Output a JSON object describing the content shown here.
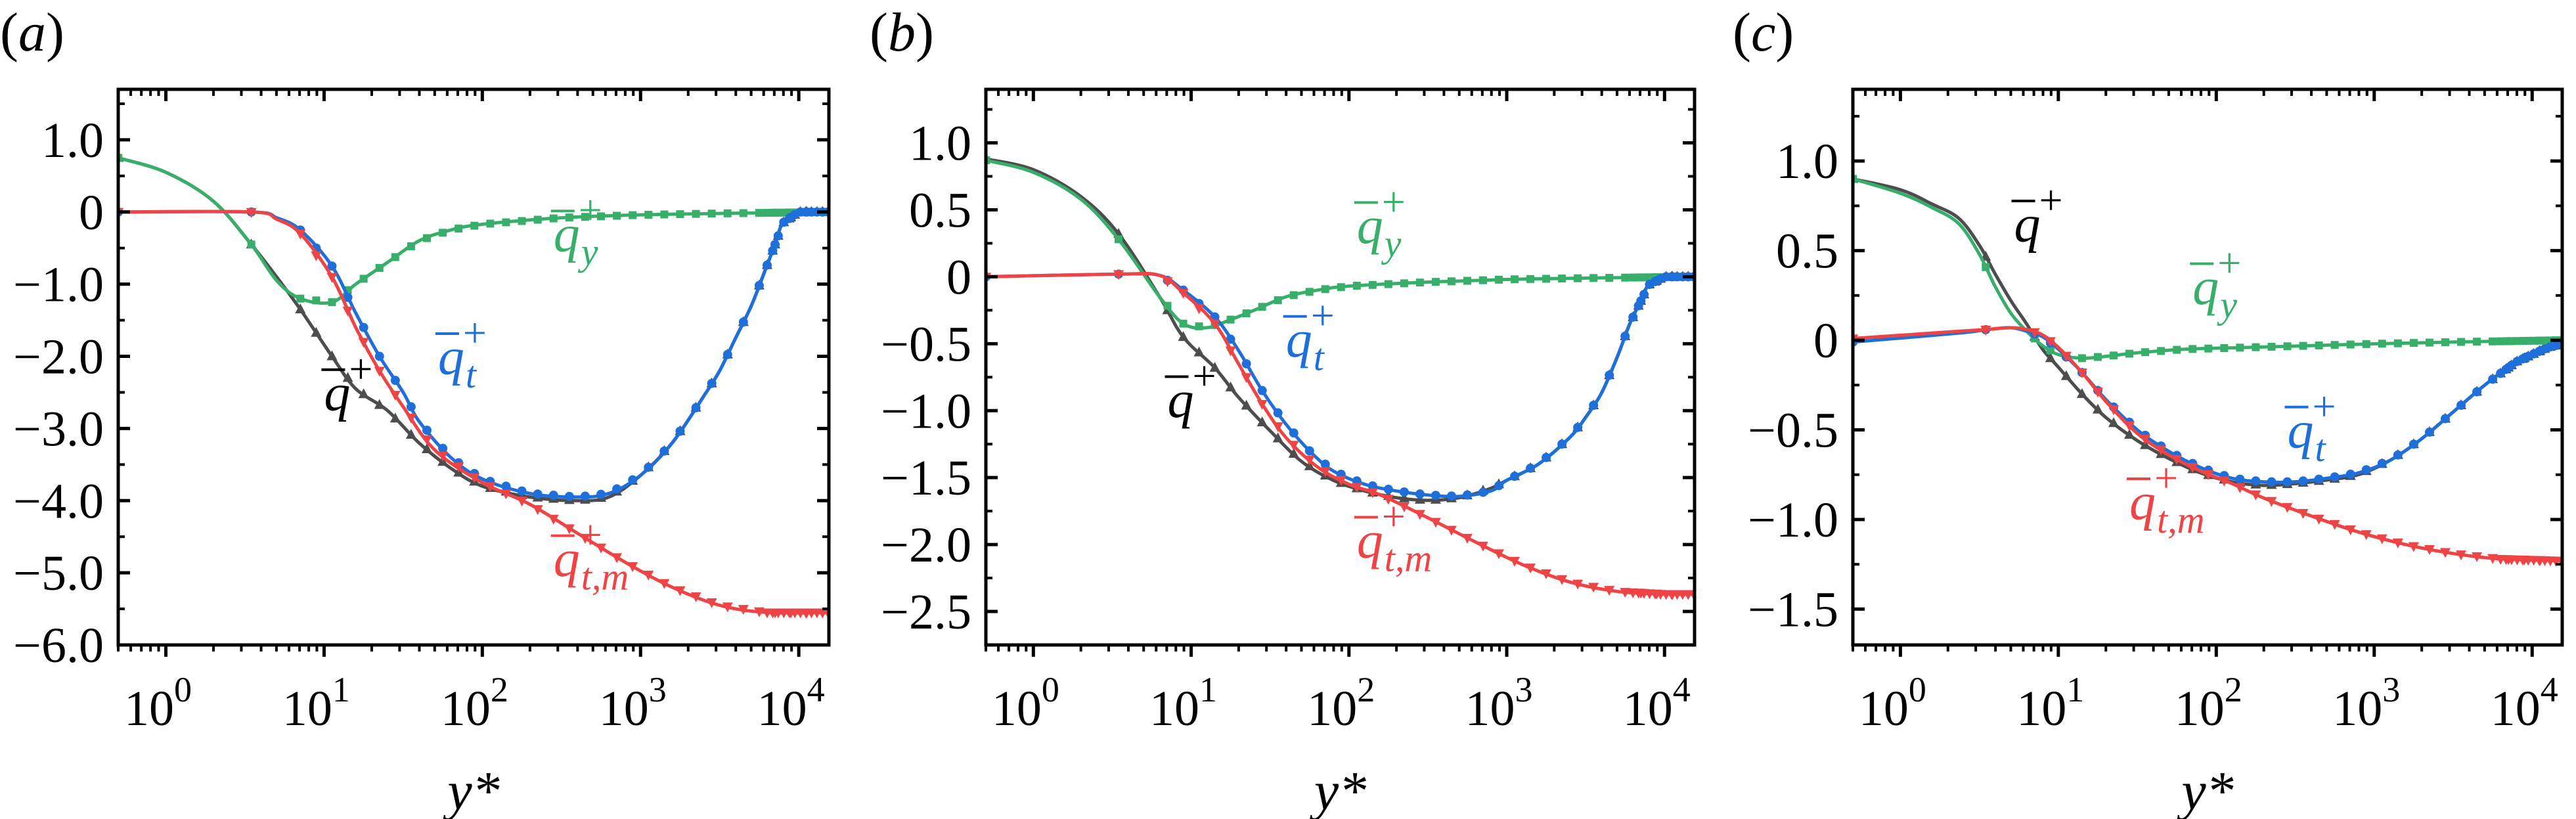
{
  "figure": {
    "xlabel": "y*",
    "colors": {
      "q": "#4d4d4d",
      "qy": "#37ae6a",
      "qt": "#1f6fdb",
      "qtm": "#ef4446"
    }
  },
  "chart_data": [
    {
      "type": "line",
      "panel": "(a)",
      "title": "",
      "xlabel": "y*",
      "ylabel": "",
      "xscale": "log",
      "xlim": [
        0.5,
        15500
      ],
      "ylim": [
        -6.0,
        1.7
      ],
      "xticks": [
        "10^0",
        "10^1",
        "10^2",
        "10^3",
        "10^4"
      ],
      "yticks": [
        1.0,
        0,
        -1.0,
        -2.0,
        -3.0,
        -4.0,
        -5.0,
        -6.0
      ],
      "ytick_labels": [
        "1.0",
        "0",
        "−1.0",
        "−2.0",
        "−3.0",
        "−4.0",
        "−5.0",
        "−6.0"
      ],
      "grid": false,
      "legend": "inline labels",
      "series": [
        {
          "name": "q̄⁺",
          "key": "q",
          "marker": "triangle-up",
          "log_x": [
            -0.3,
            0.0,
            0.3,
            0.54,
            0.7,
            0.85,
            1.05,
            1.2,
            1.4,
            1.6,
            1.8,
            2.0,
            2.3,
            2.6,
            2.8,
            3.0,
            3.2,
            3.4,
            3.5,
            3.6,
            3.7,
            3.78,
            3.85,
            3.9,
            4.0,
            4.19
          ],
          "values": [
            0.75,
            0.55,
            0.15,
            -0.45,
            -0.9,
            -1.35,
            -2.0,
            -2.45,
            -2.75,
            -3.2,
            -3.55,
            -3.8,
            -3.95,
            -4.0,
            -3.95,
            -3.65,
            -3.2,
            -2.55,
            -2.2,
            -1.75,
            -1.3,
            -0.85,
            -0.45,
            -0.15,
            0.0,
            0.0
          ]
        },
        {
          "name": "q̄_y⁺",
          "key": "qy",
          "marker": "square",
          "log_x": [
            -0.3,
            0.0,
            0.3,
            0.54,
            0.7,
            0.85,
            1.05,
            1.2,
            1.4,
            1.6,
            1.8,
            2.0,
            2.5,
            3.0,
            3.5,
            4.19
          ],
          "values": [
            0.75,
            0.55,
            0.15,
            -0.45,
            -0.95,
            -1.2,
            -1.25,
            -1.0,
            -0.7,
            -0.4,
            -0.25,
            -0.17,
            -0.08,
            -0.04,
            -0.02,
            0.0
          ]
        },
        {
          "name": "q̄_t⁺",
          "key": "qt",
          "marker": "circle",
          "log_x": [
            -0.3,
            0.54,
            0.7,
            0.85,
            1.05,
            1.2,
            1.35,
            1.5,
            1.6,
            1.8,
            2.0,
            2.3,
            2.6,
            2.8,
            3.0,
            3.2,
            3.4,
            3.5,
            3.6,
            3.7,
            3.78,
            3.85,
            3.9,
            4.0,
            4.19
          ],
          "values": [
            0.0,
            0.0,
            -0.08,
            -0.25,
            -0.75,
            -1.4,
            -2.0,
            -2.5,
            -2.9,
            -3.4,
            -3.7,
            -3.9,
            -3.95,
            -3.9,
            -3.65,
            -3.2,
            -2.55,
            -2.2,
            -1.75,
            -1.3,
            -0.85,
            -0.45,
            -0.15,
            0.0,
            0.0
          ]
        },
        {
          "name": "q̄_t,m⁺",
          "key": "qtm",
          "marker": "triangle-down",
          "log_x": [
            -0.3,
            0.54,
            0.7,
            0.85,
            1.05,
            1.2,
            1.35,
            1.5,
            1.7,
            2.0,
            2.3,
            2.6,
            2.9,
            3.2,
            3.5,
            3.8,
            4.19
          ],
          "values": [
            0.0,
            0.0,
            -0.1,
            -0.3,
            -0.9,
            -1.6,
            -2.2,
            -2.7,
            -3.3,
            -3.75,
            -4.05,
            -4.45,
            -4.85,
            -5.2,
            -5.45,
            -5.55,
            -5.55
          ]
        }
      ],
      "labels": [
        {
          "key": "qy",
          "sub": "y",
          "log_x": 2.45,
          "y": -0.55
        },
        {
          "key": "qt",
          "sub": "t",
          "log_x": 1.72,
          "y": -2.25
        },
        {
          "key": "q",
          "sub": "",
          "log_x": 1.0,
          "y": -2.75
        },
        {
          "key": "qtm",
          "sub": "t,m",
          "log_x": 2.45,
          "y": -5.05
        }
      ]
    },
    {
      "type": "line",
      "panel": "(b)",
      "title": "",
      "xlabel": "y*",
      "ylabel": "",
      "xscale": "log",
      "xlim": [
        0.5,
        15500
      ],
      "ylim": [
        -2.75,
        1.4
      ],
      "xticks": [
        "10^0",
        "10^1",
        "10^2",
        "10^3",
        "10^4"
      ],
      "yticks": [
        1.0,
        0.5,
        0,
        -0.5,
        -1.0,
        -1.5,
        -2.0,
        -2.5
      ],
      "ytick_labels": [
        "1.0",
        "0.5",
        "0",
        "−0.5",
        "−1.0",
        "−1.5",
        "−2.0",
        "−2.5"
      ],
      "grid": false,
      "legend": "inline labels",
      "series": [
        {
          "name": "q̄⁺",
          "key": "q",
          "marker": "triangle-up",
          "log_x": [
            -0.3,
            0.0,
            0.3,
            0.54,
            0.8,
            0.95,
            1.15,
            1.3,
            1.5,
            1.7,
            1.9,
            2.1,
            2.3,
            2.5,
            2.7,
            2.9,
            3.0,
            3.2,
            3.4,
            3.5,
            3.6,
            3.7,
            3.78,
            3.85,
            3.9,
            4.0,
            4.19
          ],
          "values": [
            0.88,
            0.8,
            0.6,
            0.32,
            -0.15,
            -0.45,
            -0.68,
            -0.9,
            -1.15,
            -1.38,
            -1.52,
            -1.6,
            -1.65,
            -1.67,
            -1.65,
            -1.58,
            -1.52,
            -1.4,
            -1.2,
            -1.05,
            -0.87,
            -0.6,
            -0.35,
            -0.18,
            -0.06,
            0.0,
            0.0
          ]
        },
        {
          "name": "q̄_y⁺",
          "key": "qy",
          "marker": "square",
          "log_x": [
            -0.3,
            0.0,
            0.3,
            0.54,
            0.8,
            0.95,
            1.1,
            1.25,
            1.4,
            1.6,
            1.8,
            2.0,
            2.5,
            3.0,
            3.5,
            4.19
          ],
          "values": [
            0.87,
            0.78,
            0.58,
            0.28,
            -0.15,
            -0.35,
            -0.38,
            -0.32,
            -0.25,
            -0.15,
            -0.1,
            -0.07,
            -0.04,
            -0.02,
            -0.01,
            0.0
          ]
        },
        {
          "name": "q̄_t⁺",
          "key": "qt",
          "marker": "circle",
          "log_x": [
            -0.3,
            0.54,
            0.8,
            0.95,
            1.15,
            1.3,
            1.45,
            1.6,
            1.75,
            1.9,
            2.1,
            2.3,
            2.5,
            2.7,
            2.9,
            3.0,
            3.2,
            3.4,
            3.5,
            3.6,
            3.7,
            3.78,
            3.85,
            3.9,
            4.0,
            4.19
          ],
          "values": [
            0.0,
            0.02,
            0.01,
            -0.1,
            -0.3,
            -0.55,
            -0.85,
            -1.1,
            -1.3,
            -1.45,
            -1.55,
            -1.6,
            -1.63,
            -1.64,
            -1.6,
            -1.52,
            -1.4,
            -1.2,
            -1.05,
            -0.87,
            -0.6,
            -0.35,
            -0.18,
            -0.06,
            0.0,
            0.0
          ]
        },
        {
          "name": "q̄_t,m⁺",
          "key": "qtm",
          "marker": "triangle-down",
          "log_x": [
            -0.3,
            0.54,
            0.8,
            0.95,
            1.15,
            1.3,
            1.45,
            1.6,
            1.8,
            2.0,
            2.2,
            2.5,
            2.8,
            3.1,
            3.4,
            3.7,
            4.0,
            4.19
          ],
          "values": [
            0.0,
            0.02,
            0.01,
            -0.12,
            -0.35,
            -0.65,
            -0.95,
            -1.2,
            -1.42,
            -1.55,
            -1.63,
            -1.8,
            -1.98,
            -2.15,
            -2.28,
            -2.35,
            -2.37,
            -2.37
          ]
        }
      ],
      "labels": [
        {
          "key": "qy",
          "sub": "y",
          "log_x": 2.05,
          "y": 0.25
        },
        {
          "key": "qt",
          "sub": "t",
          "log_x": 1.6,
          "y": -0.6
        },
        {
          "key": "q",
          "sub": "",
          "log_x": 0.85,
          "y": -1.05
        },
        {
          "key": "qtm",
          "sub": "t,m",
          "log_x": 2.05,
          "y": -2.1
        }
      ]
    },
    {
      "type": "line",
      "panel": "(c)",
      "title": "",
      "xlabel": "y*",
      "ylabel": "",
      "xscale": "log",
      "xlim": [
        0.5,
        15500
      ],
      "ylim": [
        -1.7,
        1.4
      ],
      "xticks": [
        "10^0",
        "10^1",
        "10^2",
        "10^3",
        "10^4"
      ],
      "yticks": [
        1.0,
        0.5,
        0,
        -0.5,
        -1.0,
        -1.5
      ],
      "ytick_labels": [
        "1.0",
        "0.5",
        "0",
        "−0.5",
        "−1.0",
        "−1.5"
      ],
      "grid": false,
      "legend": "inline labels",
      "series": [
        {
          "name": "q̄⁺",
          "key": "q",
          "marker": "triangle-up",
          "log_x": [
            -0.3,
            0.0,
            0.2,
            0.37,
            0.5,
            0.6,
            0.7,
            0.8,
            0.9,
            1.0,
            1.15,
            1.3,
            1.5,
            1.7,
            1.9,
            2.1,
            2.3,
            2.5,
            2.7,
            2.9,
            3.1,
            3.3,
            3.5,
            3.7,
            3.9,
            4.1,
            4.19
          ],
          "values": [
            0.9,
            0.84,
            0.76,
            0.68,
            0.53,
            0.37,
            0.22,
            0.09,
            -0.05,
            -0.15,
            -0.3,
            -0.43,
            -0.56,
            -0.66,
            -0.74,
            -0.79,
            -0.81,
            -0.8,
            -0.78,
            -0.75,
            -0.67,
            -0.55,
            -0.4,
            -0.25,
            -0.12,
            -0.04,
            -0.02
          ]
        },
        {
          "name": "q̄_y⁺",
          "key": "qy",
          "marker": "square",
          "log_x": [
            -0.3,
            0.0,
            0.2,
            0.37,
            0.5,
            0.6,
            0.7,
            0.8,
            0.9,
            1.0,
            1.15,
            1.3,
            1.5,
            1.8,
            2.2,
            2.6,
            3.0,
            3.5,
            4.19
          ],
          "values": [
            0.9,
            0.82,
            0.74,
            0.65,
            0.48,
            0.3,
            0.15,
            0.05,
            -0.03,
            -0.08,
            -0.1,
            -0.09,
            -0.07,
            -0.05,
            -0.04,
            -0.03,
            -0.02,
            -0.01,
            0.0
          ]
        },
        {
          "name": "q̄_t⁺",
          "key": "qt",
          "marker": "circle",
          "log_x": [
            -0.3,
            0.37,
            0.55,
            0.7,
            0.8,
            0.9,
            1.0,
            1.15,
            1.3,
            1.5,
            1.7,
            1.9,
            2.1,
            2.3,
            2.5,
            2.7,
            2.9,
            3.1,
            3.3,
            3.5,
            3.7,
            3.9,
            4.1,
            4.19
          ],
          "values": [
            -0.01,
            0.04,
            0.06,
            0.07,
            0.05,
            0.02,
            -0.05,
            -0.18,
            -0.33,
            -0.5,
            -0.62,
            -0.71,
            -0.77,
            -0.79,
            -0.79,
            -0.77,
            -0.74,
            -0.67,
            -0.55,
            -0.4,
            -0.25,
            -0.12,
            -0.04,
            -0.02
          ]
        },
        {
          "name": "q̄_t,m⁺",
          "key": "qtm",
          "marker": "triangle-down",
          "log_x": [
            -0.3,
            0.37,
            0.55,
            0.7,
            0.8,
            0.9,
            1.0,
            1.15,
            1.3,
            1.5,
            1.7,
            1.9,
            2.1,
            2.3,
            2.6,
            2.9,
            3.2,
            3.5,
            3.8,
            4.19
          ],
          "values": [
            0.01,
            0.05,
            0.06,
            0.07,
            0.06,
            0.03,
            -0.04,
            -0.18,
            -0.34,
            -0.52,
            -0.64,
            -0.73,
            -0.8,
            -0.88,
            -0.98,
            -1.07,
            -1.14,
            -1.19,
            -1.22,
            -1.23
          ]
        }
      ],
      "labels": [
        {
          "key": "q",
          "sub": "",
          "log_x": 0.72,
          "y": 0.55
        },
        {
          "key": "qy",
          "sub": "y",
          "log_x": 1.85,
          "y": 0.2
        },
        {
          "key": "qt",
          "sub": "t",
          "log_x": 2.45,
          "y": -0.6
        },
        {
          "key": "qtm",
          "sub": "t,m",
          "log_x": 1.45,
          "y": -1.0
        }
      ]
    }
  ],
  "panels": [
    {
      "label_letter": "a"
    },
    {
      "label_letter": "b"
    },
    {
      "label_letter": "c"
    }
  ]
}
